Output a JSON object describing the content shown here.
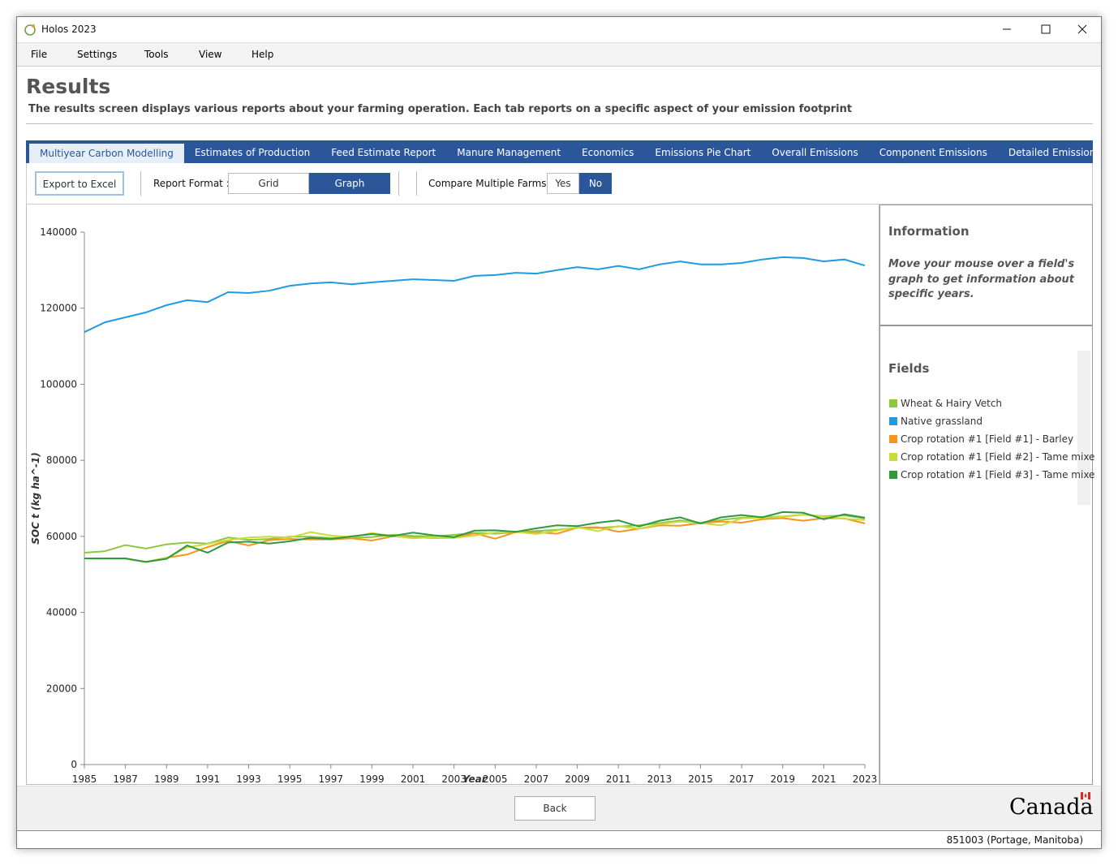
{
  "window": {
    "title": "Holos 2023"
  },
  "menu": [
    "File",
    "Settings",
    "Tools",
    "View",
    "Help"
  ],
  "header": {
    "title": "Results",
    "description": "The results screen displays various reports about your farming operation. Each tab reports on a specific aspect of your emission footprint"
  },
  "tabs": [
    "Multiyear Carbon Modelling",
    "Estimates of Production",
    "Feed Estimate Report",
    "Manure Management",
    "Economics",
    "Emissions Pie Chart",
    "Overall Emissions",
    "Component Emissions",
    "Detailed Emission Report"
  ],
  "toolbar": {
    "export": "Export to Excel",
    "report_format_label": "Report Format :",
    "report_formats": [
      "Grid",
      "Graph"
    ],
    "compare_label": "Compare Multiple Farms :",
    "compare_options": [
      "Yes",
      "No"
    ]
  },
  "info": {
    "title": "Information",
    "text": "Move your mouse over a field's graph to get information about specific years."
  },
  "fields": {
    "title": "Fields"
  },
  "chart_data": {
    "type": "line",
    "x_label": "Year",
    "y_label": "SOC t (kg ha^-1)",
    "x": [
      1985,
      1986,
      1987,
      1988,
      1989,
      1990,
      1991,
      1992,
      1993,
      1994,
      1995,
      1996,
      1997,
      1998,
      1999,
      2000,
      2001,
      2002,
      2003,
      2004,
      2005,
      2006,
      2007,
      2008,
      2009,
      2010,
      2011,
      2012,
      2013,
      2014,
      2015,
      2016,
      2017,
      2018,
      2019,
      2020,
      2021,
      2022,
      2023
    ],
    "xlim": [
      1985,
      2023
    ],
    "xticks": [
      1985,
      1987,
      1989,
      1991,
      1993,
      1995,
      1997,
      1999,
      2001,
      2003,
      2005,
      2007,
      2009,
      2011,
      2013,
      2015,
      2017,
      2019,
      2021,
      2023
    ],
    "ylim": [
      0,
      140000
    ],
    "yticks": [
      0,
      20000,
      40000,
      60000,
      80000,
      100000,
      120000,
      140000
    ],
    "series": [
      {
        "name": "Wheat & Hairy Vetch",
        "color": "#8dc63f",
        "values": [
          55700,
          56100,
          57700,
          56800,
          57900,
          58400,
          58100,
          59700,
          59100,
          59300,
          59900,
          59900,
          59600,
          59600,
          59800,
          60400,
          60100,
          60000,
          60400,
          60900,
          60700,
          61100,
          61400,
          61700,
          62300,
          62200,
          62600,
          62900,
          63500,
          64200,
          63600,
          64300,
          64900,
          65100,
          65200,
          65700,
          65300,
          65500,
          64700
        ]
      },
      {
        "name": "Native grassland",
        "color": "#1f9be0",
        "values": [
          113700,
          116300,
          117600,
          118900,
          120800,
          122100,
          121600,
          124200,
          124000,
          124600,
          125900,
          126500,
          126800,
          126300,
          126800,
          127200,
          127600,
          127400,
          127200,
          128500,
          128700,
          129300,
          129100,
          130000,
          130800,
          130200,
          131100,
          130200,
          131500,
          132300,
          131500,
          131500,
          131900,
          132800,
          133400,
          133200,
          132300,
          132800,
          131200
        ]
      },
      {
        "name": "Crop rotation #1 [Field #1] - Barley",
        "color": "#f7941d",
        "values": [
          54200,
          54100,
          54100,
          53300,
          54400,
          55200,
          57200,
          58800,
          57600,
          59000,
          59300,
          59200,
          59200,
          59500,
          58900,
          60000,
          59700,
          59600,
          59600,
          60800,
          59400,
          61100,
          61100,
          60700,
          62300,
          62400,
          61200,
          62000,
          62900,
          62800,
          63500,
          63900,
          63600,
          64500,
          64800,
          64100,
          64800,
          64700,
          63400
        ]
      },
      {
        "name": "Crop rotation #1 [Field #2] - Tame mixe",
        "color": "#c9dc3b",
        "values": [
          54200,
          54100,
          54100,
          53300,
          54300,
          57100,
          58000,
          59000,
          59700,
          59900,
          59700,
          61100,
          60200,
          59800,
          60900,
          60100,
          59500,
          59800,
          59600,
          60200,
          61000,
          61200,
          60600,
          61500,
          62400,
          61400,
          62700,
          62000,
          63200,
          63900,
          63500,
          62900,
          64700,
          64900,
          65100,
          65700,
          65300,
          64600,
          64300
        ]
      },
      {
        "name": "Crop rotation #1 [Field #3] - Tame mixe",
        "color": "#2f9a3c",
        "values": [
          54200,
          54200,
          54200,
          53300,
          54100,
          57600,
          55700,
          58400,
          58600,
          58100,
          58700,
          59600,
          59300,
          60000,
          60600,
          60100,
          61000,
          60300,
          59800,
          61500,
          61600,
          61200,
          62100,
          62900,
          62700,
          63600,
          64200,
          62600,
          64100,
          65000,
          63400,
          65000,
          65600,
          65000,
          66400,
          66200,
          64500,
          65800,
          64900
        ]
      }
    ]
  },
  "footer": {
    "back": "Back",
    "brand": "Canada",
    "status": "851003 (Portage, Manitoba)"
  }
}
